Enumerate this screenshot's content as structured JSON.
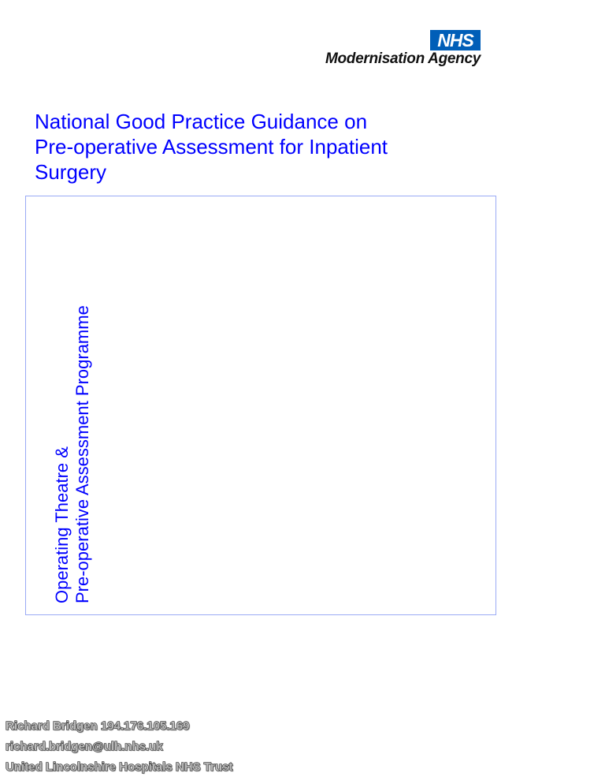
{
  "logo": {
    "badge": "NHS",
    "name": "Modernisation Agency",
    "badge_color": "#005eb8"
  },
  "title": {
    "line1": "National Good Practice Guidance on",
    "line2": "Pre-operative Assessment for Inpatient",
    "line3": "Surgery",
    "color": "#0000ff"
  },
  "side_label": {
    "line1": "Operating Theatre &",
    "line2": "Pre-operative Assessment Programme"
  },
  "watermark": {
    "line1": "Richard Bridgen 194.176.105.169",
    "line2": "richard.bridgen@ulh.nhs.uk",
    "line3": "United Lincolnshire Hospitals NHS Trust"
  }
}
